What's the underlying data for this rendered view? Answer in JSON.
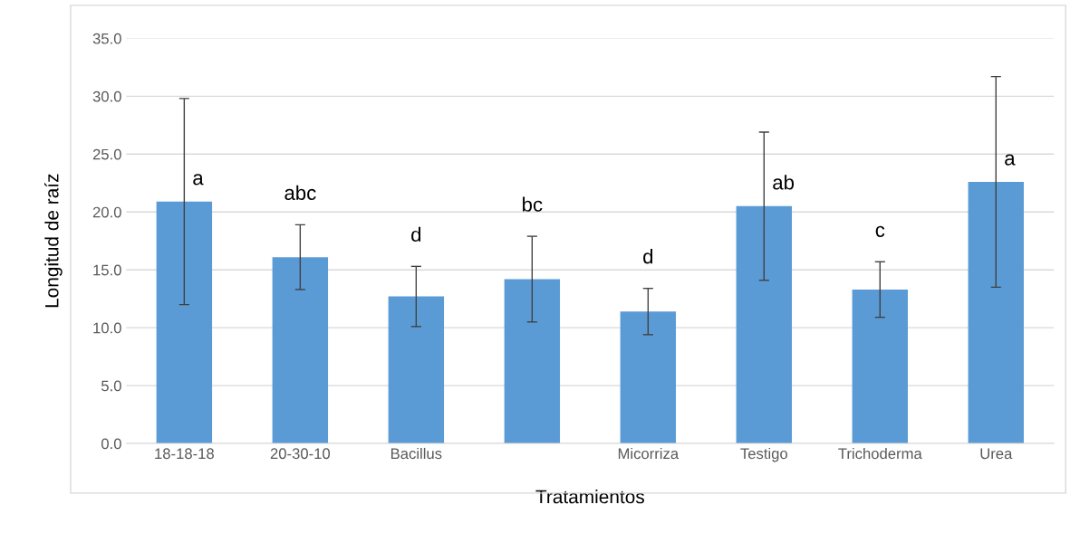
{
  "chart_data": {
    "type": "bar",
    "xlabel": "Tratamientos",
    "ylabel": "Longitud de raíz",
    "categories": [
      "18-18-18",
      "20-30-10",
      "Bacillus",
      null,
      "Micorriza",
      "Testigo",
      "Trichoderma",
      "Urea"
    ],
    "values": [
      20.9,
      16.1,
      12.7,
      14.2,
      11.4,
      20.5,
      13.3,
      22.6
    ],
    "errors": [
      8.9,
      2.8,
      2.6,
      3.7,
      2.0,
      6.4,
      2.4,
      9.1
    ],
    "color": "#5b9bd5",
    "ylim": [
      0,
      35
    ],
    "yticks": [
      {
        "value": 0,
        "label": "0.0"
      },
      {
        "value": 5,
        "label": "5.0"
      },
      {
        "value": 10,
        "label": "10.0"
      },
      {
        "value": 15,
        "label": "15.0"
      },
      {
        "value": 20,
        "label": "20.0"
      },
      {
        "value": 25,
        "label": "25.0"
      },
      {
        "value": 30,
        "label": "30.0"
      },
      {
        "value": 35,
        "label": "35.0"
      }
    ],
    "grid": "y",
    "annotations": [
      "a",
      "abc",
      "d",
      "bc",
      "d",
      "ab",
      "c",
      "a"
    ]
  }
}
